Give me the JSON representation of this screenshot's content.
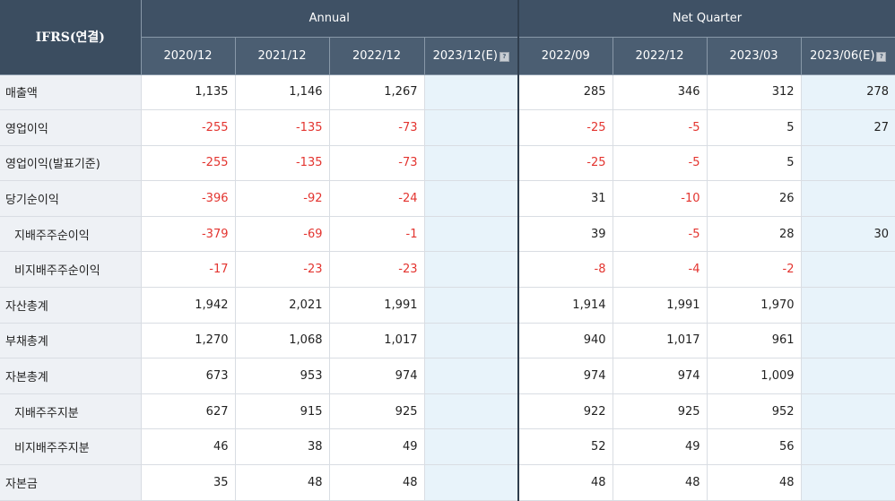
{
  "header": {
    "corner_label": "IFRS(연결)",
    "group_annual": "Annual",
    "group_quarter": "Net Quarter",
    "periods": [
      "2020/12",
      "2021/12",
      "2022/12",
      "2023/12(E)",
      "2022/09",
      "2022/12",
      "2023/03",
      "2023/06(E)"
    ],
    "estimate_icon": "question-icon"
  },
  "rows": [
    {
      "label": "매출액",
      "sub": false,
      "values": [
        "1,135",
        "1,146",
        "1,267",
        "",
        "285",
        "346",
        "312",
        "278"
      ]
    },
    {
      "label": "영업이익",
      "sub": false,
      "values": [
        "-255",
        "-135",
        "-73",
        "",
        "-25",
        "-5",
        "5",
        "27"
      ]
    },
    {
      "label": "영업이익(발표기준)",
      "sub": false,
      "values": [
        "-255",
        "-135",
        "-73",
        "",
        "-25",
        "-5",
        "5",
        ""
      ]
    },
    {
      "label": "당기순이익",
      "sub": false,
      "values": [
        "-396",
        "-92",
        "-24",
        "",
        "31",
        "-10",
        "26",
        ""
      ]
    },
    {
      "label": "지배주주순이익",
      "sub": true,
      "values": [
        "-379",
        "-69",
        "-1",
        "",
        "39",
        "-5",
        "28",
        "30"
      ]
    },
    {
      "label": "비지배주주순이익",
      "sub": true,
      "values": [
        "-17",
        "-23",
        "-23",
        "",
        "-8",
        "-4",
        "-2",
        ""
      ]
    },
    {
      "label": "자산총계",
      "sub": false,
      "values": [
        "1,942",
        "2,021",
        "1,991",
        "",
        "1,914",
        "1,991",
        "1,970",
        ""
      ]
    },
    {
      "label": "부채총계",
      "sub": false,
      "values": [
        "1,270",
        "1,068",
        "1,017",
        "",
        "940",
        "1,017",
        "961",
        ""
      ]
    },
    {
      "label": "자본총계",
      "sub": false,
      "values": [
        "673",
        "953",
        "974",
        "",
        "974",
        "974",
        "1,009",
        ""
      ]
    },
    {
      "label": "지배주주지분",
      "sub": true,
      "values": [
        "627",
        "915",
        "925",
        "",
        "922",
        "925",
        "952",
        ""
      ]
    },
    {
      "label": "비지배주주지분",
      "sub": true,
      "values": [
        "46",
        "38",
        "49",
        "",
        "52",
        "49",
        "56",
        ""
      ]
    },
    {
      "label": "자본금",
      "sub": false,
      "values": [
        "35",
        "48",
        "48",
        "",
        "48",
        "48",
        "48",
        ""
      ]
    }
  ],
  "colors": {
    "header_bg": "#4b5e72",
    "label_bg": "#eef1f5",
    "estimate_bg": "#e8f3fa",
    "negative": "#e3342f"
  }
}
